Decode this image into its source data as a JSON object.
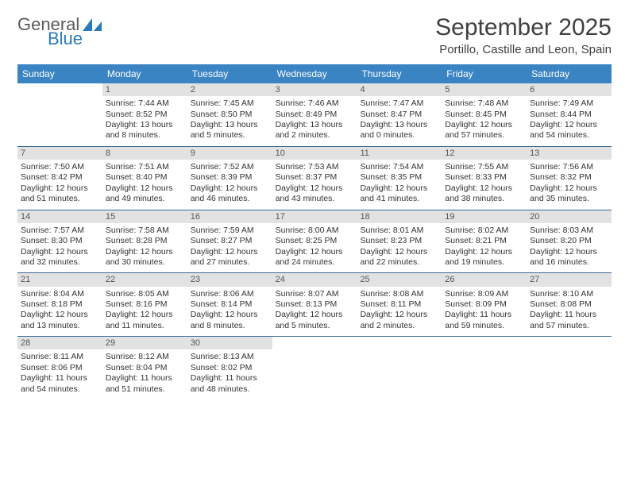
{
  "brand": {
    "text1": "General",
    "text2": "Blue",
    "icon_color": "#2a7ab8"
  },
  "title": "September 2025",
  "location": "Portillo, Castille and Leon, Spain",
  "colors": {
    "header_bg": "#3b84c4",
    "header_text": "#ffffff",
    "daynum_bg": "#e2e2e2",
    "daynum_text": "#555555",
    "divider": "#3b6a94",
    "body_text": "#333333",
    "title_text": "#404040"
  },
  "day_names": [
    "Sunday",
    "Monday",
    "Tuesday",
    "Wednesday",
    "Thursday",
    "Friday",
    "Saturday"
  ],
  "weeks": [
    [
      {
        "n": "",
        "sr": "",
        "ss": "",
        "dl": ""
      },
      {
        "n": "1",
        "sr": "Sunrise: 7:44 AM",
        "ss": "Sunset: 8:52 PM",
        "dl": "Daylight: 13 hours and 8 minutes."
      },
      {
        "n": "2",
        "sr": "Sunrise: 7:45 AM",
        "ss": "Sunset: 8:50 PM",
        "dl": "Daylight: 13 hours and 5 minutes."
      },
      {
        "n": "3",
        "sr": "Sunrise: 7:46 AM",
        "ss": "Sunset: 8:49 PM",
        "dl": "Daylight: 13 hours and 2 minutes."
      },
      {
        "n": "4",
        "sr": "Sunrise: 7:47 AM",
        "ss": "Sunset: 8:47 PM",
        "dl": "Daylight: 13 hours and 0 minutes."
      },
      {
        "n": "5",
        "sr": "Sunrise: 7:48 AM",
        "ss": "Sunset: 8:45 PM",
        "dl": "Daylight: 12 hours and 57 minutes."
      },
      {
        "n": "6",
        "sr": "Sunrise: 7:49 AM",
        "ss": "Sunset: 8:44 PM",
        "dl": "Daylight: 12 hours and 54 minutes."
      }
    ],
    [
      {
        "n": "7",
        "sr": "Sunrise: 7:50 AM",
        "ss": "Sunset: 8:42 PM",
        "dl": "Daylight: 12 hours and 51 minutes."
      },
      {
        "n": "8",
        "sr": "Sunrise: 7:51 AM",
        "ss": "Sunset: 8:40 PM",
        "dl": "Daylight: 12 hours and 49 minutes."
      },
      {
        "n": "9",
        "sr": "Sunrise: 7:52 AM",
        "ss": "Sunset: 8:39 PM",
        "dl": "Daylight: 12 hours and 46 minutes."
      },
      {
        "n": "10",
        "sr": "Sunrise: 7:53 AM",
        "ss": "Sunset: 8:37 PM",
        "dl": "Daylight: 12 hours and 43 minutes."
      },
      {
        "n": "11",
        "sr": "Sunrise: 7:54 AM",
        "ss": "Sunset: 8:35 PM",
        "dl": "Daylight: 12 hours and 41 minutes."
      },
      {
        "n": "12",
        "sr": "Sunrise: 7:55 AM",
        "ss": "Sunset: 8:33 PM",
        "dl": "Daylight: 12 hours and 38 minutes."
      },
      {
        "n": "13",
        "sr": "Sunrise: 7:56 AM",
        "ss": "Sunset: 8:32 PM",
        "dl": "Daylight: 12 hours and 35 minutes."
      }
    ],
    [
      {
        "n": "14",
        "sr": "Sunrise: 7:57 AM",
        "ss": "Sunset: 8:30 PM",
        "dl": "Daylight: 12 hours and 32 minutes."
      },
      {
        "n": "15",
        "sr": "Sunrise: 7:58 AM",
        "ss": "Sunset: 8:28 PM",
        "dl": "Daylight: 12 hours and 30 minutes."
      },
      {
        "n": "16",
        "sr": "Sunrise: 7:59 AM",
        "ss": "Sunset: 8:27 PM",
        "dl": "Daylight: 12 hours and 27 minutes."
      },
      {
        "n": "17",
        "sr": "Sunrise: 8:00 AM",
        "ss": "Sunset: 8:25 PM",
        "dl": "Daylight: 12 hours and 24 minutes."
      },
      {
        "n": "18",
        "sr": "Sunrise: 8:01 AM",
        "ss": "Sunset: 8:23 PM",
        "dl": "Daylight: 12 hours and 22 minutes."
      },
      {
        "n": "19",
        "sr": "Sunrise: 8:02 AM",
        "ss": "Sunset: 8:21 PM",
        "dl": "Daylight: 12 hours and 19 minutes."
      },
      {
        "n": "20",
        "sr": "Sunrise: 8:03 AM",
        "ss": "Sunset: 8:20 PM",
        "dl": "Daylight: 12 hours and 16 minutes."
      }
    ],
    [
      {
        "n": "21",
        "sr": "Sunrise: 8:04 AM",
        "ss": "Sunset: 8:18 PM",
        "dl": "Daylight: 12 hours and 13 minutes."
      },
      {
        "n": "22",
        "sr": "Sunrise: 8:05 AM",
        "ss": "Sunset: 8:16 PM",
        "dl": "Daylight: 12 hours and 11 minutes."
      },
      {
        "n": "23",
        "sr": "Sunrise: 8:06 AM",
        "ss": "Sunset: 8:14 PM",
        "dl": "Daylight: 12 hours and 8 minutes."
      },
      {
        "n": "24",
        "sr": "Sunrise: 8:07 AM",
        "ss": "Sunset: 8:13 PM",
        "dl": "Daylight: 12 hours and 5 minutes."
      },
      {
        "n": "25",
        "sr": "Sunrise: 8:08 AM",
        "ss": "Sunset: 8:11 PM",
        "dl": "Daylight: 12 hours and 2 minutes."
      },
      {
        "n": "26",
        "sr": "Sunrise: 8:09 AM",
        "ss": "Sunset: 8:09 PM",
        "dl": "Daylight: 11 hours and 59 minutes."
      },
      {
        "n": "27",
        "sr": "Sunrise: 8:10 AM",
        "ss": "Sunset: 8:08 PM",
        "dl": "Daylight: 11 hours and 57 minutes."
      }
    ],
    [
      {
        "n": "28",
        "sr": "Sunrise: 8:11 AM",
        "ss": "Sunset: 8:06 PM",
        "dl": "Daylight: 11 hours and 54 minutes."
      },
      {
        "n": "29",
        "sr": "Sunrise: 8:12 AM",
        "ss": "Sunset: 8:04 PM",
        "dl": "Daylight: 11 hours and 51 minutes."
      },
      {
        "n": "30",
        "sr": "Sunrise: 8:13 AM",
        "ss": "Sunset: 8:02 PM",
        "dl": "Daylight: 11 hours and 48 minutes."
      },
      {
        "n": "",
        "sr": "",
        "ss": "",
        "dl": ""
      },
      {
        "n": "",
        "sr": "",
        "ss": "",
        "dl": ""
      },
      {
        "n": "",
        "sr": "",
        "ss": "",
        "dl": ""
      },
      {
        "n": "",
        "sr": "",
        "ss": "",
        "dl": ""
      }
    ]
  ]
}
